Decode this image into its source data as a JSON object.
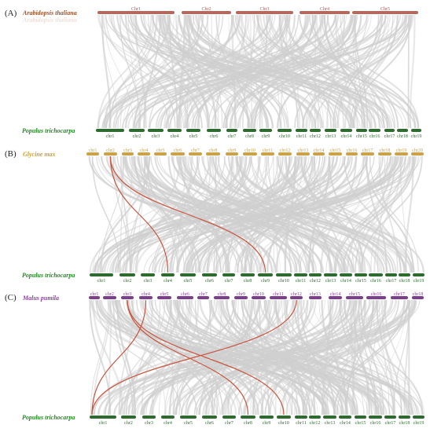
{
  "colors": {
    "background": "#ffffff",
    "links": "#cfcfcf",
    "highlight": "#c8553d",
    "arabidopsis_bar": "#b5685c",
    "arabidopsis_label": "#a0522d",
    "arabidopsis_chr": "#c0504d",
    "populus_bar": "#2e6b2e",
    "populus_label": "#1f8a1f",
    "populus_chr": "#2e6b2e",
    "glycine_bar": "#c9a24a",
    "glycine_label": "#d4a017",
    "glycine_chr": "#c9a24a",
    "malus_bar": "#7b3f8c",
    "malus_label": "#8e3fa0",
    "malus_chr": "#8e3fa0"
  },
  "panels": [
    {
      "id": "A",
      "label": "(A)",
      "top_species": "Arabidopsis thaliana",
      "top_ghost_text": "Arabidopsis thaliana",
      "top_chromosomes": [
        "Chr1",
        "Chr2",
        "Chr3",
        "Chr4",
        "Chr5"
      ],
      "bottom_species": "Populus trichocarpa",
      "bottom_chromosomes": [
        "chr1",
        "chr2",
        "chr3",
        "chr4",
        "chr5",
        "chr6",
        "chr7",
        "chr8",
        "chr9",
        "chr10",
        "chr11",
        "chr12",
        "chr13",
        "chr14",
        "chr15",
        "chr16",
        "chr17",
        "chr18",
        "chr19"
      ],
      "highlight_links": []
    },
    {
      "id": "B",
      "label": "(B)",
      "top_species": "Glycine max",
      "top_chromosomes": [
        "chr1",
        "chr2",
        "chr3",
        "chr4",
        "chr5",
        "chr6",
        "chr7",
        "chr8",
        "chr9",
        "chr10",
        "chr11",
        "chr12",
        "chr13",
        "chr14",
        "chr15",
        "chr16",
        "chr17",
        "chr18",
        "chr19",
        "chr20"
      ],
      "bottom_species": "Populus trichocarpa",
      "bottom_chromosomes": [
        "chr1",
        "chr2",
        "chr3",
        "chr4",
        "chr5",
        "chr6",
        "chr7",
        "chr8",
        "chr9",
        "chr10",
        "chr11",
        "chr12",
        "chr13",
        "chr14",
        "chr15",
        "chr16",
        "chr17",
        "chr18",
        "chr19"
      ],
      "highlight_links": [
        {
          "from": "chr2",
          "to": "chr4"
        },
        {
          "from": "chr2",
          "to": "chr9"
        }
      ]
    },
    {
      "id": "C",
      "label": "(C)",
      "top_species": "Malus pumila",
      "top_chromosomes": [
        "chr1",
        "chr2",
        "chr3",
        "chr4",
        "chr5",
        "chr6",
        "chr7",
        "chr8",
        "chr9",
        "chr10",
        "chr11",
        "chr12",
        "chr13",
        "chr14",
        "chr15",
        "chr16",
        "chr17",
        "chr18"
      ],
      "bottom_species": "Populus trichocarpa",
      "bottom_chromosomes": [
        "chr1",
        "chr2",
        "chr3",
        "chr4",
        "chr5",
        "chr6",
        "chr7",
        "chr8",
        "chr9",
        "chr10",
        "chr11",
        "chr12",
        "chr13",
        "chr14",
        "chr15",
        "chr16",
        "chr17",
        "chr18",
        "chr19"
      ],
      "highlight_links": [
        {
          "from": "chr3",
          "to": "chr8"
        },
        {
          "from": "chr3",
          "to": "chr10"
        },
        {
          "from": "chr4",
          "to": "chr1"
        },
        {
          "from": "chr12",
          "to": "chr1"
        }
      ]
    }
  ]
}
